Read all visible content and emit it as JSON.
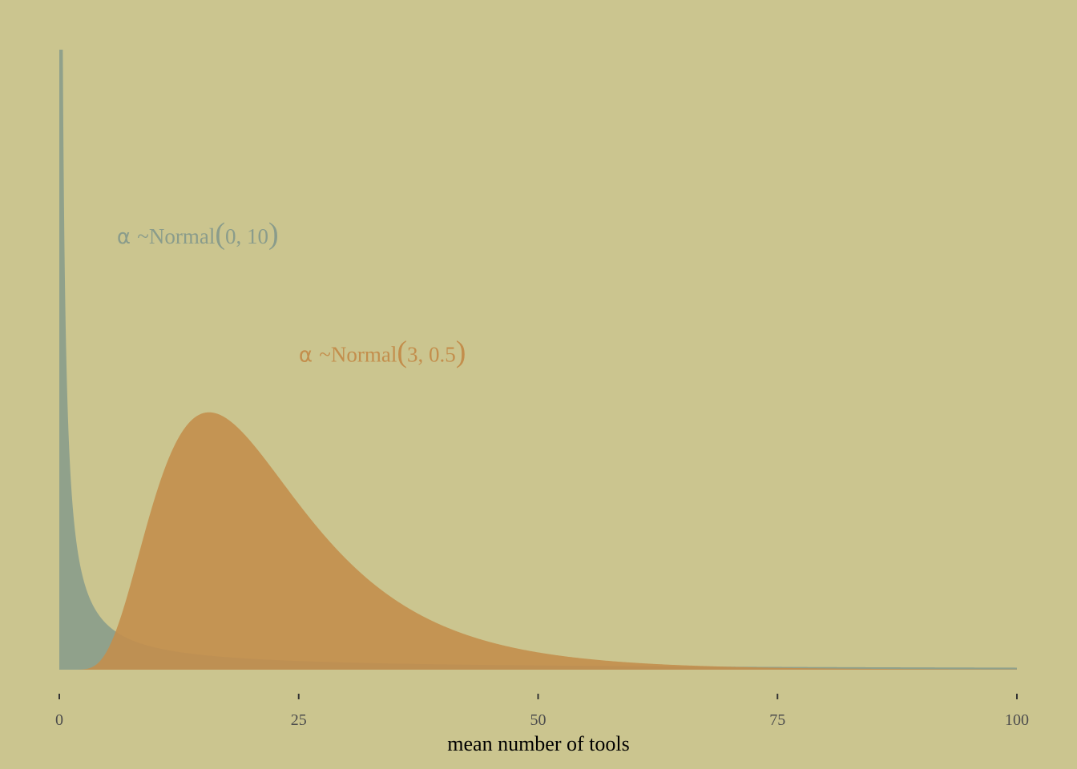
{
  "chart_data": {
    "type": "area",
    "title": "",
    "xlabel": "mean number of tools",
    "ylabel": "",
    "xlim": [
      0,
      100
    ],
    "x_ticks": [
      0,
      25,
      50,
      75,
      100
    ],
    "x_tick_labels": [
      "0",
      "25",
      "50",
      "75",
      "100"
    ],
    "y_axis_visible": false,
    "grid": false,
    "legend": "none",
    "background_color": "#CBC58F",
    "series": [
      {
        "distribution": "lognormal",
        "meanlog": 0,
        "sdlog": 10,
        "color": "#8A9C8B",
        "annotation": {
          "prefix": "α ~Normal",
          "params": "0, 10",
          "x": 3,
          "y_fraction": 0.7
        }
      },
      {
        "distribution": "lognormal",
        "meanlog": 3,
        "sdlog": 0.5,
        "color": "#C38E4C",
        "annotation": {
          "prefix": "α ~Normal",
          "params": "3, 0.5",
          "x": 22,
          "y_fraction": 0.51
        }
      }
    ]
  }
}
